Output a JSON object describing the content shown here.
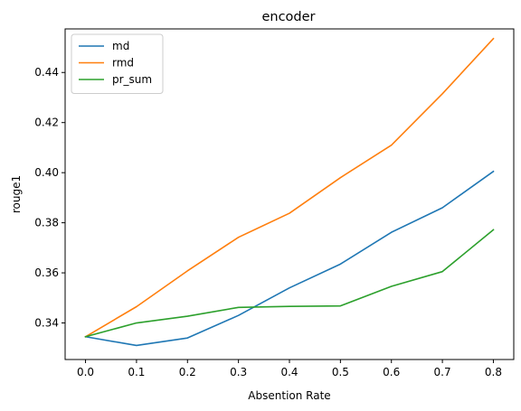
{
  "chart_data": {
    "type": "line",
    "title": "encoder",
    "xlabel": "Absention Rate",
    "ylabel": "rouge1",
    "x": [
      0.0,
      0.1,
      0.2,
      0.3,
      0.4,
      0.5,
      0.6,
      0.7,
      0.8
    ],
    "x_tick_labels": [
      "0.0",
      "0.1",
      "0.2",
      "0.3",
      "0.4",
      "0.5",
      "0.6",
      "0.7",
      "0.8"
    ],
    "y_ticks": [
      0.34,
      0.36,
      0.38,
      0.4,
      0.42,
      0.44
    ],
    "y_tick_labels": [
      "0.34",
      "0.36",
      "0.38",
      "0.40",
      "0.42",
      "0.44"
    ],
    "xlim": [
      -0.04,
      0.84
    ],
    "ylim": [
      0.3254,
      0.4574
    ],
    "grid": false,
    "legend_position": "upper-left",
    "series": [
      {
        "name": "md",
        "color": "#1f77b4",
        "values": [
          0.3345,
          0.331,
          0.334,
          0.343,
          0.354,
          0.3635,
          0.3762,
          0.386,
          0.4005
        ]
      },
      {
        "name": "rmd",
        "color": "#ff7f0e",
        "values": [
          0.3345,
          0.3465,
          0.3608,
          0.3742,
          0.3838,
          0.398,
          0.411,
          0.4315,
          0.4535
        ]
      },
      {
        "name": "pr_sum",
        "color": "#2ca02c",
        "values": [
          0.3345,
          0.34,
          0.3427,
          0.3462,
          0.3466,
          0.3468,
          0.3546,
          0.3605,
          0.3772
        ]
      }
    ]
  }
}
